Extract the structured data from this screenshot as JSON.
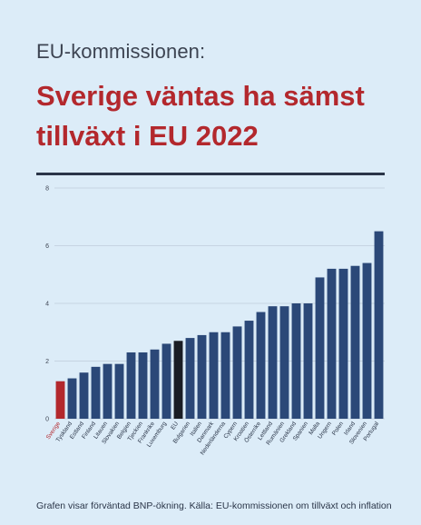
{
  "header": {
    "kicker": "EU-kommissionen:",
    "headline": "Sverige väntas ha sämst tillväxt i EU 2022"
  },
  "footnote": "Grafen visar förväntad BNP-ökning. Källa: EU-kommissionen om tillväxt och inflation",
  "colors": {
    "background": "#dcecf8",
    "bar": "#2b4878",
    "highlight_sverige": "#b3282d",
    "highlight_eu": "#1a1d24",
    "headline": "#b3282d",
    "grid": "#c6d4e2"
  },
  "chart_data": {
    "type": "bar",
    "title": "",
    "xlabel": "",
    "ylabel": "",
    "ylim": [
      0,
      8
    ],
    "yticks": [
      0,
      2,
      4,
      6,
      8
    ],
    "grid": true,
    "categories": [
      "Sverige",
      "Tyskland",
      "Estland",
      "Finland",
      "Litauen",
      "Slovakien",
      "Belgien",
      "Tjeckien",
      "Frankrike",
      "Luxemburg",
      "EU",
      "Bulgarien",
      "Italien",
      "Danmark",
      "Nederländerna",
      "Cypern",
      "Kroatien",
      "Österrike",
      "Lettland",
      "Rumänien",
      "Grekland",
      "Spanien",
      "Malta",
      "Ungern",
      "Polen",
      "Irland",
      "Slovenien",
      "Portugal"
    ],
    "values": [
      1.3,
      1.4,
      1.6,
      1.8,
      1.9,
      1.9,
      2.3,
      2.3,
      2.4,
      2.6,
      2.7,
      2.8,
      2.9,
      3.0,
      3.0,
      3.2,
      3.4,
      3.7,
      3.9,
      3.9,
      4.0,
      4.0,
      4.9,
      5.2,
      5.2,
      5.3,
      5.4,
      6.5
    ],
    "highlight": {
      "Sverige": "red",
      "EU": "black"
    }
  }
}
